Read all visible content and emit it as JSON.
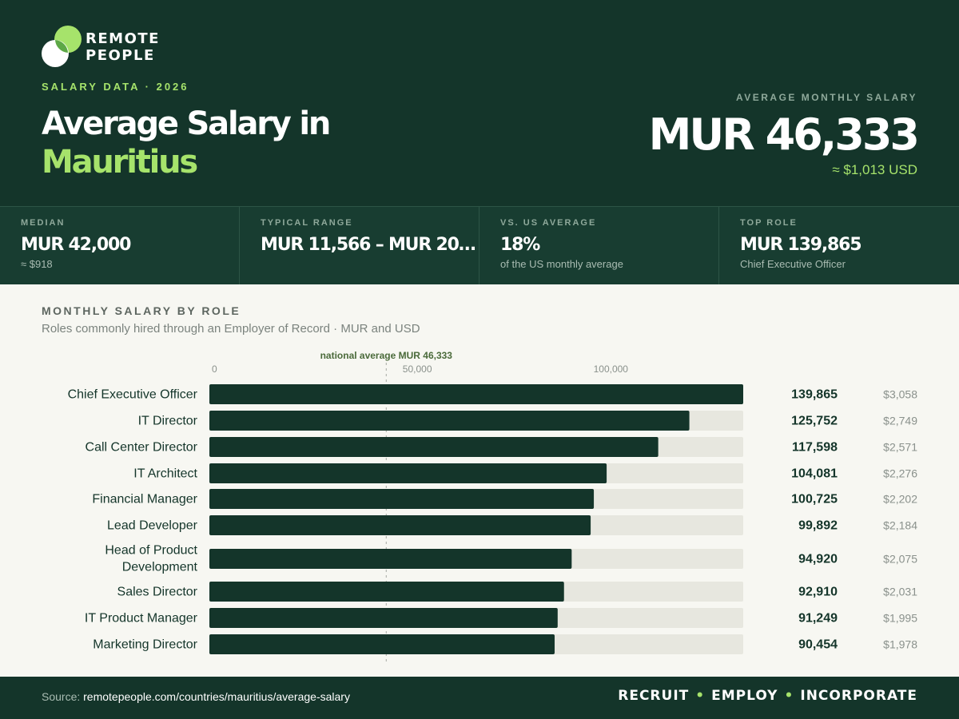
{
  "brand": {
    "name_line1": "REMOTE",
    "name_line2": "PEOPLE",
    "logo_icon": "overlapping-circles-icon"
  },
  "header": {
    "eyebrow": "SALARY DATA · 2026",
    "title_line1": "Average Salary in",
    "title_line2": "Mauritius",
    "avg_label": "AVERAGE MONTHLY SALARY",
    "avg_value": "MUR 46,333",
    "avg_usd": "≈ $1,013 USD"
  },
  "stats": [
    {
      "label": "MEDIAN",
      "value": "MUR 42,000",
      "sub": "≈ $918"
    },
    {
      "label": "TYPICAL RANGE",
      "value": "MUR 11,566 – MUR 20…",
      "sub": ""
    },
    {
      "label": "VS. US AVERAGE",
      "value": "18%",
      "sub": "of the US monthly average"
    },
    {
      "label": "TOP ROLE",
      "value": "MUR 139,865",
      "sub": "Chief Executive Officer"
    }
  ],
  "chart": {
    "heading": "MONTHLY SALARY BY ROLE",
    "subtitle": "Roles commonly hired through an Employer of Record · MUR and USD"
  },
  "chart_data": {
    "type": "bar",
    "orientation": "horizontal",
    "xlim": [
      0,
      139865
    ],
    "ticks": [
      {
        "value": 0,
        "label": "0"
      },
      {
        "value": 50000,
        "label": "50,000"
      },
      {
        "value": 100000,
        "label": "100,000"
      }
    ],
    "reference_line": {
      "value": 46333,
      "label": "national average MUR 46,333"
    },
    "categories": [
      "Chief Executive Officer",
      "IT Director",
      "Call Center Director",
      "IT Architect",
      "Financial Manager",
      "Lead Developer",
      "Head of Product Development",
      "Sales Director",
      "IT Product Manager",
      "Marketing Director"
    ],
    "values": [
      139865,
      125752,
      117598,
      104081,
      100725,
      99892,
      94920,
      92910,
      91249,
      90454
    ],
    "value_labels": [
      "139,865",
      "125,752",
      "117,598",
      "104,081",
      "100,725",
      "99,892",
      "94,920",
      "92,910",
      "91,249",
      "90,454"
    ],
    "usd_labels": [
      "$3,058",
      "$2,749",
      "$2,571",
      "$2,276",
      "$2,202",
      "$2,184",
      "$2,075",
      "$2,031",
      "$1,995",
      "$1,978"
    ],
    "colors": {
      "bar": "#14352a",
      "track": "#e7e7df",
      "reference": "#a6aaa4",
      "reference_label": "#4a6a3a"
    }
  },
  "footer": {
    "source_prefix": "Source: ",
    "source_url": "remotepeople.com/countries/mauritius/average-salary",
    "tag1": "RECRUIT",
    "tag2": "EMPLOY",
    "tag3": "INCORPORATE",
    "separator": "•"
  }
}
